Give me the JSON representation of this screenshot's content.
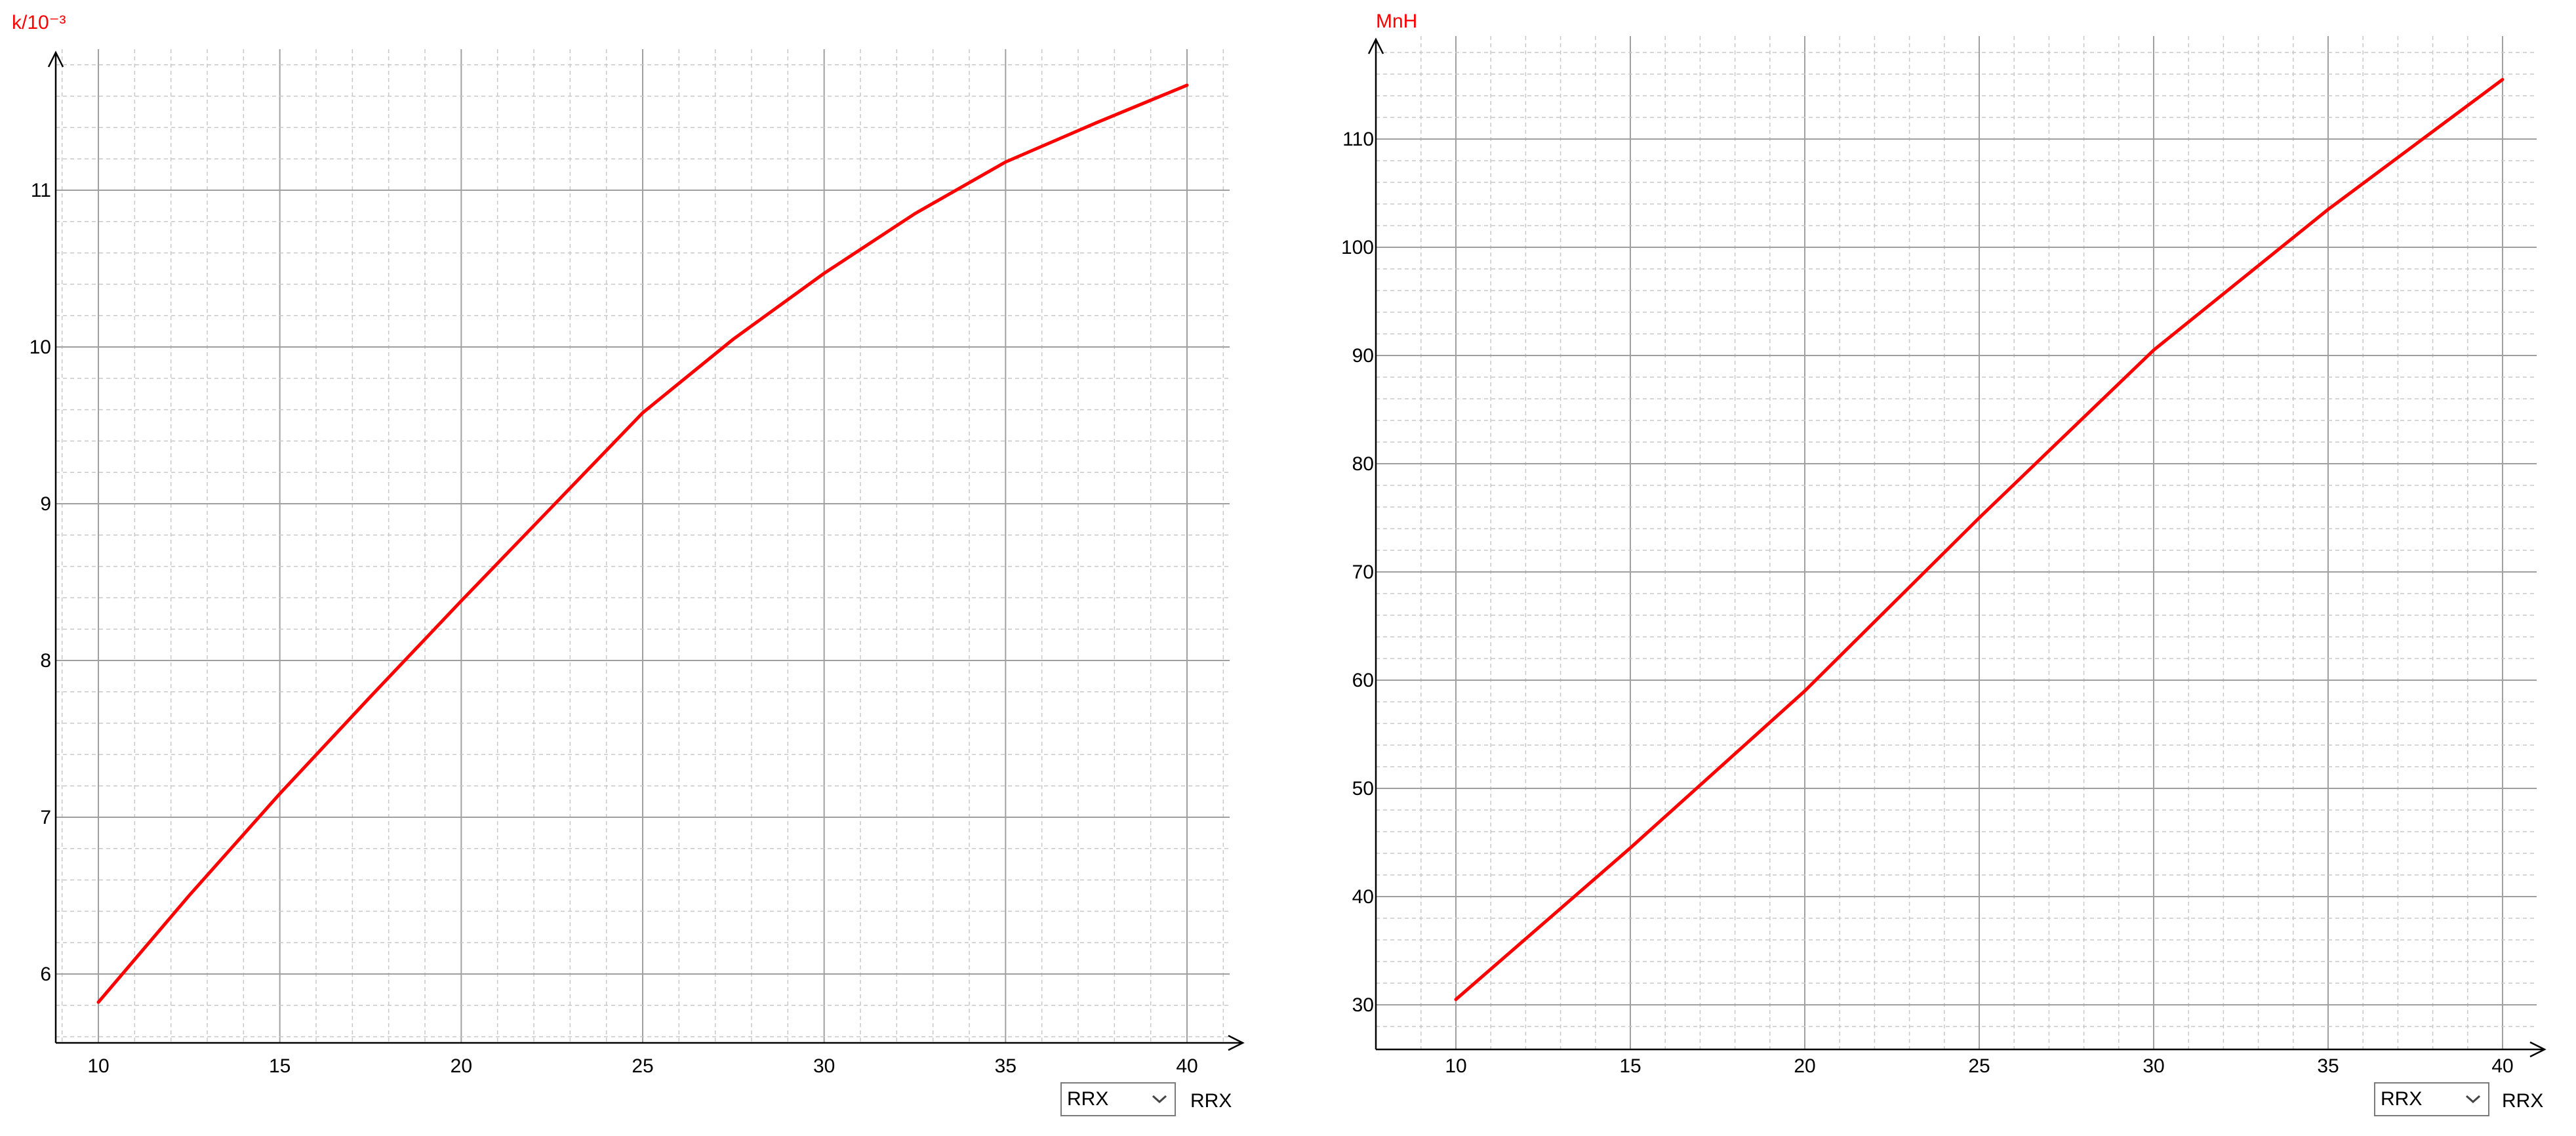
{
  "chart_data": [
    {
      "type": "line",
      "ylabel": "k/10⁻³",
      "xlabel": "RRX",
      "x_selector": "RRX",
      "xlim": [
        9,
        41.5
      ],
      "ylim": [
        5.6,
        11.9
      ],
      "xticks": [
        "10",
        "15",
        "20",
        "25",
        "30",
        "35",
        "40"
      ],
      "yticks": [
        "6",
        "7",
        "8",
        "9",
        "10",
        "11"
      ],
      "grid": true,
      "series": [
        {
          "color": "#ff0000",
          "x": [
            10,
            12.5,
            15,
            17.5,
            20,
            22.5,
            25,
            27.5,
            30,
            32.5,
            35,
            37.5,
            40
          ],
          "y": [
            5.82,
            6.5,
            7.15,
            7.77,
            8.38,
            8.98,
            9.58,
            10.05,
            10.47,
            10.85,
            11.18,
            11.43,
            11.67
          ]
        }
      ]
    },
    {
      "type": "line",
      "ylabel": "MnH",
      "xlabel": "RRX",
      "x_selector": "RRX",
      "xlim": [
        8.5,
        41.2
      ],
      "ylim": [
        28,
        118
      ],
      "xticks": [
        "10",
        "15",
        "20",
        "25",
        "30",
        "35",
        "40"
      ],
      "yticks": [
        "30",
        "40",
        "50",
        "60",
        "70",
        "80",
        "90",
        "100",
        "110"
      ],
      "grid": true,
      "series": [
        {
          "color": "#ff0000",
          "x": [
            10,
            15,
            20,
            25,
            30,
            35,
            40
          ],
          "y": [
            30.5,
            44.5,
            59,
            75,
            90.5,
            103.5,
            115.5
          ]
        }
      ]
    }
  ]
}
